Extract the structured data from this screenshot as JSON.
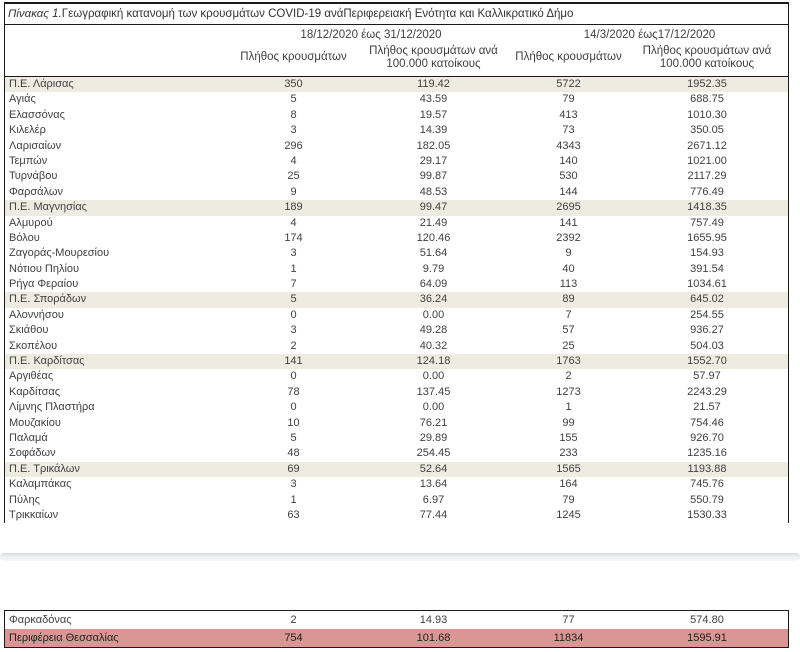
{
  "title": {
    "prefix": "Πίνακας 1.",
    "text": "Γεωγραφική κατανομή των κρουσμάτων COVID-19 ανάΠεριφερειακή Ενότητα και Καλλικρατικό Δήμο"
  },
  "columns": {
    "period1": "18/12/2020 έως 31/12/2020",
    "period2": "14/3/2020 έως17/12/2020",
    "cases": "Πλήθος κρουσμάτων",
    "per100k": "Πλήθος κρουσμάτων ανά 100.000 κατοίκους"
  },
  "colors": {
    "pe_row_bg": "#EEECE1",
    "total_row_bg": "#D99694",
    "border": "#1a1a1a",
    "text": "#3f3f3f"
  },
  "sections": [
    {
      "id": "main",
      "rows": [
        {
          "name": "Π.Ε. Λάρισας",
          "cases_p1": "350",
          "per100k_p1": "119.42",
          "cases_p2": "5722",
          "per100k_p2": "1952.35",
          "style": "pe"
        },
        {
          "name": "Αγιάς",
          "cases_p1": "5",
          "per100k_p1": "43.59",
          "cases_p2": "79",
          "per100k_p2": "688.75",
          "style": "muni"
        },
        {
          "name": "Ελασσόνας",
          "cases_p1": "8",
          "per100k_p1": "19.57",
          "cases_p2": "413",
          "per100k_p2": "1010.30",
          "style": "muni"
        },
        {
          "name": "Κιλελέρ",
          "cases_p1": "3",
          "per100k_p1": "14.39",
          "cases_p2": "73",
          "per100k_p2": "350.05",
          "style": "muni"
        },
        {
          "name": "Λαρισαίων",
          "cases_p1": "296",
          "per100k_p1": "182.05",
          "cases_p2": "4343",
          "per100k_p2": "2671.12",
          "style": "muni"
        },
        {
          "name": "Τεμπών",
          "cases_p1": "4",
          "per100k_p1": "29.17",
          "cases_p2": "140",
          "per100k_p2": "1021.00",
          "style": "muni"
        },
        {
          "name": "Τυρνάβου",
          "cases_p1": "25",
          "per100k_p1": "99.87",
          "cases_p2": "530",
          "per100k_p2": "2117.29",
          "style": "muni"
        },
        {
          "name": "Φαρσάλων",
          "cases_p1": "9",
          "per100k_p1": "48.53",
          "cases_p2": "144",
          "per100k_p2": "776.49",
          "style": "muni"
        },
        {
          "name": "Π.Ε. Μαγνησίας",
          "cases_p1": "189",
          "per100k_p1": "99.47",
          "cases_p2": "2695",
          "per100k_p2": "1418.35",
          "style": "pe"
        },
        {
          "name": "Αλμυρού",
          "cases_p1": "4",
          "per100k_p1": "21.49",
          "cases_p2": "141",
          "per100k_p2": "757.49",
          "style": "muni"
        },
        {
          "name": "Βόλου",
          "cases_p1": "174",
          "per100k_p1": "120.46",
          "cases_p2": "2392",
          "per100k_p2": "1655.95",
          "style": "muni"
        },
        {
          "name": "Ζαγοράς-Μουρεσίου",
          "cases_p1": "3",
          "per100k_p1": "51.64",
          "cases_p2": "9",
          "per100k_p2": "154.93",
          "style": "muni"
        },
        {
          "name": "Νότιου Πηλίου",
          "cases_p1": "1",
          "per100k_p1": "9.79",
          "cases_p2": "40",
          "per100k_p2": "391.54",
          "style": "muni"
        },
        {
          "name": "Ρήγα Φεραίου",
          "cases_p1": "7",
          "per100k_p1": "64.09",
          "cases_p2": "113",
          "per100k_p2": "1034.61",
          "style": "muni"
        },
        {
          "name": "Π.Ε. Σποράδων",
          "cases_p1": "5",
          "per100k_p1": "36.24",
          "cases_p2": "89",
          "per100k_p2": "645.02",
          "style": "pe"
        },
        {
          "name": "Αλοννήσου",
          "cases_p1": "0",
          "per100k_p1": "0.00",
          "cases_p2": "7",
          "per100k_p2": "254.55",
          "style": "muni"
        },
        {
          "name": "Σκιάθου",
          "cases_p1": "3",
          "per100k_p1": "49.28",
          "cases_p2": "57",
          "per100k_p2": "936.27",
          "style": "muni"
        },
        {
          "name": "Σκοπέλου",
          "cases_p1": "2",
          "per100k_p1": "40.32",
          "cases_p2": "25",
          "per100k_p2": "504.03",
          "style": "muni"
        },
        {
          "name": "Π.Ε. Καρδίτσας",
          "cases_p1": "141",
          "per100k_p1": "124.18",
          "cases_p2": "1763",
          "per100k_p2": "1552.70",
          "style": "pe"
        },
        {
          "name": "Αργιθέας",
          "cases_p1": "0",
          "per100k_p1": "0.00",
          "cases_p2": "2",
          "per100k_p2": "57.97",
          "style": "muni"
        },
        {
          "name": "Καρδίτσας",
          "cases_p1": "78",
          "per100k_p1": "137.45",
          "cases_p2": "1273",
          "per100k_p2": "2243.29",
          "style": "muni"
        },
        {
          "name": "Λίμνης Πλαστήρα",
          "cases_p1": "0",
          "per100k_p1": "0.00",
          "cases_p2": "1",
          "per100k_p2": "21.57",
          "style": "muni"
        },
        {
          "name": "Μουζακίου",
          "cases_p1": "10",
          "per100k_p1": "76.21",
          "cases_p2": "99",
          "per100k_p2": "754.46",
          "style": "muni"
        },
        {
          "name": "Παλαμά",
          "cases_p1": "5",
          "per100k_p1": "29.89",
          "cases_p2": "155",
          "per100k_p2": "926.70",
          "style": "muni"
        },
        {
          "name": "Σοφάδων",
          "cases_p1": "48",
          "per100k_p1": "254.45",
          "cases_p2": "233",
          "per100k_p2": "1235.16",
          "style": "muni"
        },
        {
          "name": "Π.Ε. Τρικάλων",
          "cases_p1": "69",
          "per100k_p1": "52.64",
          "cases_p2": "1565",
          "per100k_p2": "1193.88",
          "style": "pe"
        },
        {
          "name": "Καλαμπάκας",
          "cases_p1": "3",
          "per100k_p1": "13.64",
          "cases_p2": "164",
          "per100k_p2": "745.76",
          "style": "muni"
        },
        {
          "name": "Πύλης",
          "cases_p1": "1",
          "per100k_p1": "6.97",
          "cases_p2": "79",
          "per100k_p2": "550.79",
          "style": "muni"
        },
        {
          "name": "Τρικκαίων",
          "cases_p1": "63",
          "per100k_p1": "77.44",
          "cases_p2": "1245",
          "per100k_p2": "1530.33",
          "style": "muni"
        }
      ]
    },
    {
      "id": "footer",
      "rows": [
        {
          "name": "Φαρκαδόνας",
          "cases_p1": "2",
          "per100k_p1": "14.93",
          "cases_p2": "77",
          "per100k_p2": "574.80",
          "style": "muni"
        },
        {
          "name": "Περιφέρεια Θεσσαλίας",
          "cases_p1": "754",
          "per100k_p1": "101.68",
          "cases_p2": "11834",
          "per100k_p2": "1595.91",
          "style": "total"
        }
      ]
    }
  ]
}
